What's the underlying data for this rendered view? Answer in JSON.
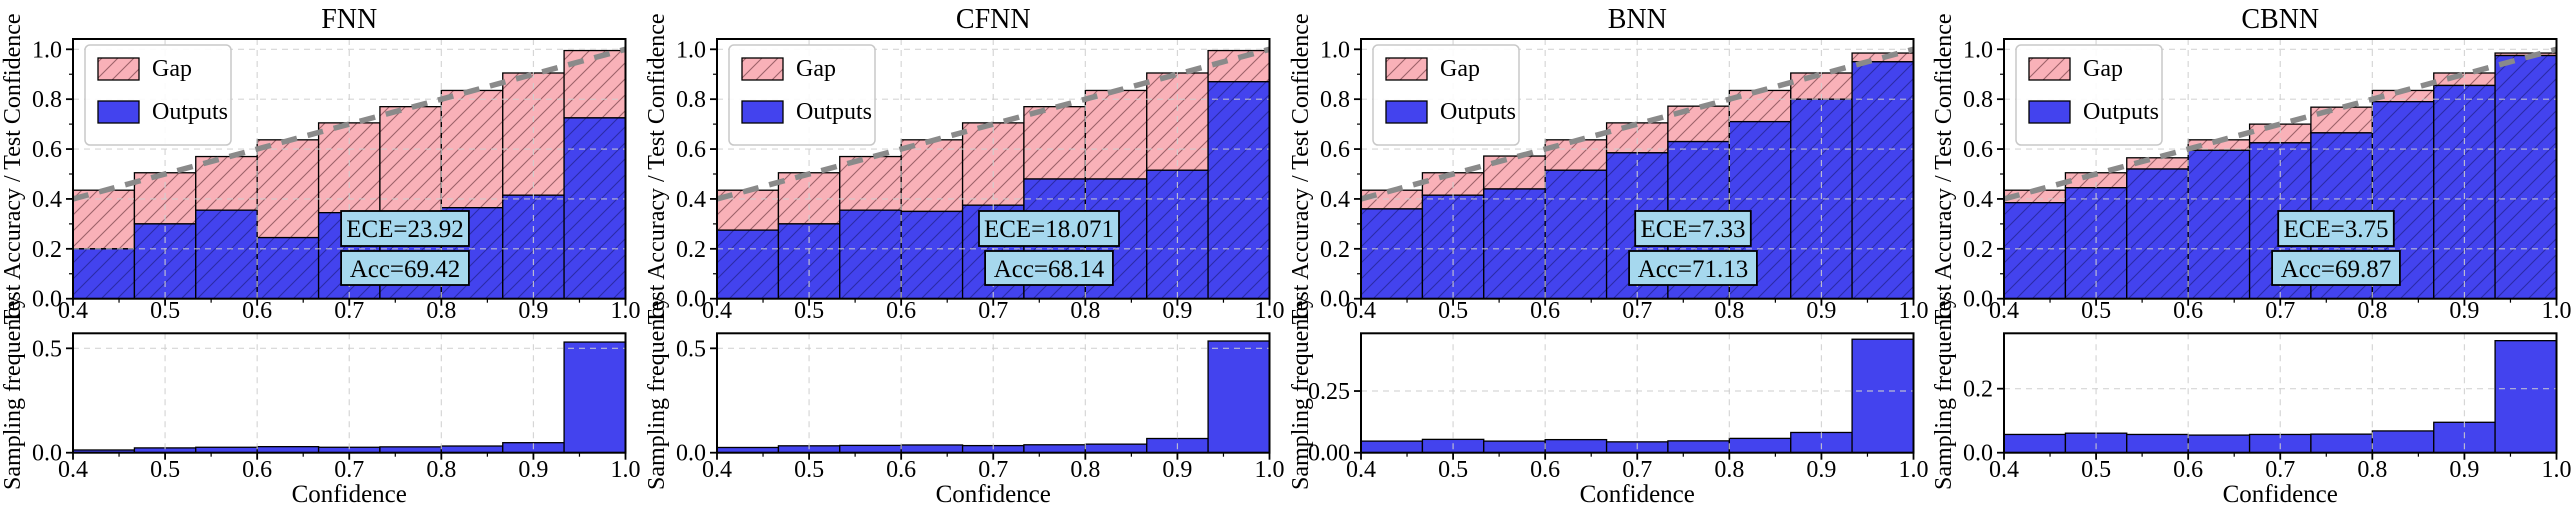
{
  "figure": {
    "xlabel": "Confidence",
    "top_ylabel": "Test Accuracy / Test Confidence",
    "bottom_ylabel": "Sampling frequency",
    "legend": {
      "gap": "Gap",
      "outputs": "Outputs"
    },
    "xticks": [
      "0.4",
      "0.5",
      "0.6",
      "0.7",
      "0.8",
      "0.9",
      "1.0"
    ],
    "top_yticks": [
      "1.0",
      "0.8",
      "0.6",
      "0.4",
      "0.2",
      "0.0"
    ],
    "colors": {
      "outputs_bar": "#4343ee",
      "gap_bar": "#f9b1b8",
      "diagonal": "#8a8a8a",
      "annotation_bg": "#a6d8ee",
      "grid": "#cfcfcf",
      "spine": "#000000"
    }
  },
  "chart_data": [
    {
      "type": "bar",
      "title": "FNN",
      "bin_edges": [
        0.4,
        0.4667,
        0.5333,
        0.6,
        0.6667,
        0.7333,
        0.8,
        0.8667,
        0.9333,
        1.0
      ],
      "reliability": {
        "ylabel": "Test Accuracy / Test Confidence",
        "outputs": [
          0.2,
          0.3,
          0.355,
          0.245,
          0.345,
          0.35,
          0.365,
          0.415,
          0.725
        ],
        "confidence": [
          0.435,
          0.505,
          0.57,
          0.637,
          0.705,
          0.77,
          0.835,
          0.905,
          0.995
        ],
        "diagonal": {
          "x": [
            0.4,
            1.0
          ],
          "y": [
            0.4,
            1.0
          ]
        },
        "ece": 23.92,
        "acc": 69.42,
        "ece_text": "ECE=23.92",
        "acc_text": "Acc=69.42",
        "ylim": [
          0,
          1.04
        ],
        "yticks": [
          1.0,
          0.8,
          0.6,
          0.4,
          0.2,
          0.0
        ]
      },
      "histogram": {
        "ylabel": "Sampling frequency",
        "xlabel": "Confidence",
        "frequency": [
          0.013,
          0.023,
          0.026,
          0.029,
          0.026,
          0.028,
          0.032,
          0.048,
          0.53
        ],
        "ylim": [
          0,
          0.572
        ],
        "yticks": [
          {
            "value": 0.5,
            "label": "0.5"
          },
          {
            "value": 0.0,
            "label": "0.0"
          }
        ]
      }
    },
    {
      "type": "bar",
      "title": "CFNN",
      "bin_edges": [
        0.4,
        0.4667,
        0.5333,
        0.6,
        0.6667,
        0.7333,
        0.8,
        0.8667,
        0.9333,
        1.0
      ],
      "reliability": {
        "ylabel": "Test Accuracy / Test Confidence",
        "outputs": [
          0.275,
          0.3,
          0.355,
          0.35,
          0.375,
          0.48,
          0.48,
          0.515,
          0.87
        ],
        "confidence": [
          0.435,
          0.505,
          0.57,
          0.637,
          0.705,
          0.77,
          0.835,
          0.905,
          0.995
        ],
        "diagonal": {
          "x": [
            0.4,
            1.0
          ],
          "y": [
            0.4,
            1.0
          ]
        },
        "ece": 18.071,
        "acc": 68.14,
        "ece_text": "ECE=18.071",
        "acc_text": "Acc=68.14",
        "ylim": [
          0,
          1.04
        ],
        "yticks": [
          1.0,
          0.8,
          0.6,
          0.4,
          0.2,
          0.0
        ]
      },
      "histogram": {
        "ylabel": "Sampling frequency",
        "xlabel": "Confidence",
        "frequency": [
          0.025,
          0.033,
          0.035,
          0.037,
          0.034,
          0.038,
          0.041,
          0.068,
          0.535
        ],
        "ylim": [
          0,
          0.572
        ],
        "yticks": [
          {
            "value": 0.5,
            "label": "0.5"
          },
          {
            "value": 0.0,
            "label": "0.0"
          }
        ]
      }
    },
    {
      "type": "bar",
      "title": "BNN",
      "bin_edges": [
        0.4,
        0.4667,
        0.5333,
        0.6,
        0.6667,
        0.7333,
        0.8,
        0.8667,
        0.9333,
        1.0
      ],
      "reliability": {
        "ylabel": "Test Accuracy / Test Confidence",
        "outputs": [
          0.36,
          0.415,
          0.44,
          0.515,
          0.585,
          0.63,
          0.71,
          0.8,
          0.95
        ],
        "confidence": [
          0.435,
          0.505,
          0.572,
          0.637,
          0.705,
          0.772,
          0.835,
          0.905,
          0.985
        ],
        "diagonal": {
          "x": [
            0.4,
            1.0
          ],
          "y": [
            0.4,
            1.0
          ]
        },
        "ece": 7.33,
        "acc": 71.13,
        "ece_text": "ECE=7.33",
        "acc_text": "Acc=71.13",
        "ylim": [
          0,
          1.04
        ],
        "yticks": [
          1.0,
          0.8,
          0.6,
          0.4,
          0.2,
          0.0
        ]
      },
      "histogram": {
        "ylabel": "Sampling frequency",
        "xlabel": "Confidence",
        "frequency": [
          0.047,
          0.054,
          0.047,
          0.053,
          0.044,
          0.048,
          0.058,
          0.082,
          0.46
        ],
        "ylim": [
          0,
          0.484
        ],
        "yticks": [
          {
            "value": 0.25,
            "label": "0.25"
          },
          {
            "value": 0.0,
            "label": "0.00"
          }
        ]
      }
    },
    {
      "type": "bar",
      "title": "CBNN",
      "bin_edges": [
        0.4,
        0.4667,
        0.5333,
        0.6,
        0.6667,
        0.7333,
        0.8,
        0.8667,
        0.9333,
        1.0
      ],
      "reliability": {
        "ylabel": "Test Accuracy / Test Confidence",
        "outputs": [
          0.385,
          0.445,
          0.52,
          0.595,
          0.625,
          0.665,
          0.79,
          0.855,
          0.975
        ],
        "confidence": [
          0.435,
          0.505,
          0.565,
          0.637,
          0.7,
          0.768,
          0.835,
          0.905,
          0.985
        ],
        "diagonal": {
          "x": [
            0.4,
            1.0
          ],
          "y": [
            0.4,
            1.0
          ]
        },
        "ece": 3.75,
        "acc": 69.87,
        "ece_text": "ECE=3.75",
        "acc_text": "Acc=69.87",
        "ylim": [
          0,
          1.04
        ],
        "yticks": [
          1.0,
          0.8,
          0.6,
          0.4,
          0.2,
          0.0
        ]
      },
      "histogram": {
        "ylabel": "Sampling frequency",
        "xlabel": "Confidence",
        "frequency": [
          0.057,
          0.061,
          0.057,
          0.055,
          0.057,
          0.058,
          0.068,
          0.095,
          0.35
        ],
        "ylim": [
          0,
          0.373
        ],
        "yticks": [
          {
            "value": 0.2,
            "label": "0.2"
          },
          {
            "value": 0.0,
            "label": "0.0"
          }
        ]
      }
    }
  ]
}
